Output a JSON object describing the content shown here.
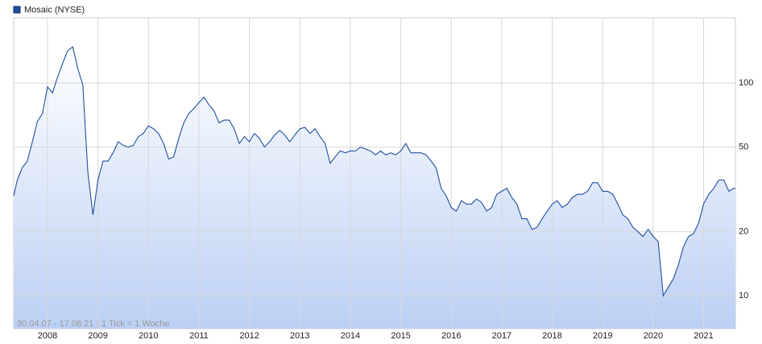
{
  "chart_data": {
    "type": "line",
    "x": [
      2007.33,
      2007.4,
      2007.5,
      2007.6,
      2007.7,
      2007.8,
      2007.9,
      2008.0,
      2008.1,
      2008.2,
      2008.3,
      2008.4,
      2008.5,
      2008.6,
      2008.7,
      2008.8,
      2008.9,
      2009.0,
      2009.1,
      2009.2,
      2009.3,
      2009.4,
      2009.5,
      2009.6,
      2009.7,
      2009.8,
      2009.9,
      2010.0,
      2010.1,
      2010.2,
      2010.3,
      2010.4,
      2010.5,
      2010.6,
      2010.7,
      2010.8,
      2010.9,
      2011.0,
      2011.1,
      2011.2,
      2011.3,
      2011.4,
      2011.5,
      2011.6,
      2011.7,
      2011.8,
      2011.9,
      2012.0,
      2012.1,
      2012.2,
      2012.3,
      2012.4,
      2012.5,
      2012.6,
      2012.7,
      2012.8,
      2012.9,
      2013.0,
      2013.1,
      2013.2,
      2013.3,
      2013.4,
      2013.5,
      2013.6,
      2013.7,
      2013.8,
      2013.9,
      2014.0,
      2014.1,
      2014.2,
      2014.3,
      2014.4,
      2014.5,
      2014.6,
      2014.7,
      2014.8,
      2014.9,
      2015.0,
      2015.1,
      2015.2,
      2015.3,
      2015.4,
      2015.5,
      2015.6,
      2015.7,
      2015.8,
      2015.9,
      2016.0,
      2016.1,
      2016.2,
      2016.3,
      2016.4,
      2016.5,
      2016.6,
      2016.7,
      2016.8,
      2016.9,
      2017.0,
      2017.1,
      2017.2,
      2017.3,
      2017.4,
      2017.5,
      2017.6,
      2017.7,
      2017.8,
      2017.9,
      2018.0,
      2018.1,
      2018.2,
      2018.3,
      2018.4,
      2018.5,
      2018.6,
      2018.7,
      2018.8,
      2018.9,
      2019.0,
      2019.1,
      2019.2,
      2019.3,
      2019.4,
      2019.5,
      2019.6,
      2019.7,
      2019.8,
      2019.9,
      2020.0,
      2020.1,
      2020.2,
      2020.3,
      2020.4,
      2020.5,
      2020.6,
      2020.7,
      2020.8,
      2020.9,
      2021.0,
      2021.1,
      2021.2,
      2021.3,
      2021.4,
      2021.5,
      2021.6,
      2021.63
    ],
    "series": [
      {
        "name": "Mosaic (NYSE)",
        "color": "#1f4f9f",
        "values": [
          29.5,
          35,
          40,
          43,
          53,
          66,
          72,
          96,
          90,
          107,
          124,
          142,
          148,
          117,
          98,
          38,
          24,
          35,
          43,
          43,
          47,
          53,
          51,
          50,
          51,
          56,
          58,
          63,
          61,
          58,
          52,
          44,
          45,
          55,
          65,
          72,
          76,
          81,
          86,
          79,
          74,
          65,
          67,
          67,
          61,
          52,
          56,
          53,
          58,
          55,
          50,
          53,
          57,
          60,
          57,
          53,
          57,
          61,
          62,
          58,
          61,
          56,
          52,
          42,
          45,
          48,
          47,
          48,
          48,
          50,
          49,
          48,
          46,
          48,
          46,
          47,
          46,
          48,
          52,
          47,
          47,
          47,
          46,
          43,
          40,
          32,
          29.5,
          26,
          25,
          28,
          27,
          27,
          28.5,
          27.5,
          25,
          26,
          30,
          31,
          32,
          29,
          27,
          23,
          23,
          20.5,
          21,
          23,
          25,
          27,
          28,
          26,
          27,
          29,
          30,
          30,
          31,
          34,
          34,
          31,
          31,
          30,
          27,
          24,
          23,
          21,
          20,
          19,
          20.5,
          19,
          18,
          10,
          11,
          12,
          14,
          17,
          19,
          19.6,
          22,
          27,
          30,
          32,
          35,
          35,
          31,
          32,
          32
        ]
      }
    ],
    "xlim": [
      2007.33,
      2021.63
    ],
    "xticks": [
      2008,
      2009,
      2010,
      2011,
      2012,
      2013,
      2014,
      2015,
      2016,
      2017,
      2018,
      2019,
      2020,
      2021
    ],
    "ylim": [
      7,
      203
    ],
    "yticks": [
      10,
      20,
      50,
      100
    ],
    "log_scale": true,
    "grid": true,
    "footnote": "30.04.07 - 17.08.21",
    "footnote2": "1 Tick = 1 Woche"
  }
}
